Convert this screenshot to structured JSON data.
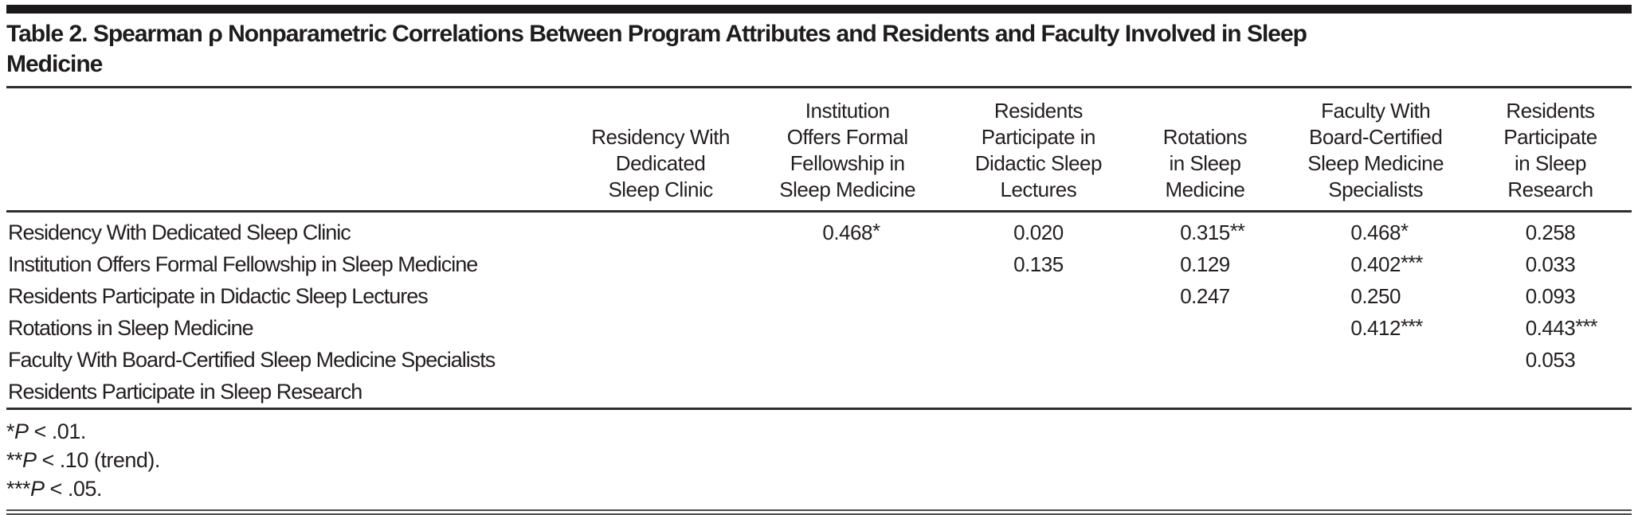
{
  "title": {
    "text": "Table 2. Spearman ρ Nonparametric Correlations Between Program Attributes and Residents and Faculty Involved in Sleep Medicine",
    "lines": [
      "Table 2. Spearman ρ Nonparametric Correlations Between Program Attributes and Residents and Faculty Involved in Sleep",
      "Medicine"
    ]
  },
  "table": {
    "columns": [
      {
        "label": "",
        "lines": []
      },
      {
        "label": "Residency With Dedicated Sleep Clinic",
        "lines": [
          "Residency With",
          "Dedicated",
          "Sleep Clinic"
        ]
      },
      {
        "label": "Institution Offers Formal Fellowship in Sleep Medicine",
        "lines": [
          "Institution",
          "Offers Formal",
          "Fellowship in",
          "Sleep Medicine"
        ]
      },
      {
        "label": "Residents Participate in Didactic Sleep Lectures",
        "lines": [
          "Residents",
          "Participate in",
          "Didactic Sleep",
          "Lectures"
        ]
      },
      {
        "label": "Rotations in Sleep Medicine",
        "lines": [
          "Rotations",
          "in Sleep",
          "Medicine"
        ]
      },
      {
        "label": "Faculty With Board-Certified Sleep Medicine Specialists",
        "lines": [
          "Faculty With",
          "Board-Certified",
          "Sleep Medicine",
          "Specialists"
        ]
      },
      {
        "label": "Residents Participate in Sleep Research",
        "lines": [
          "Residents",
          "Participate",
          "in Sleep",
          "Research"
        ]
      }
    ],
    "rows": [
      {
        "label": "Residency With Dedicated Sleep Clinic",
        "values": [
          "",
          "0.468*",
          "0.020",
          "0.315**",
          "0.468*",
          "0.258"
        ]
      },
      {
        "label": "Institution Offers Formal Fellowship in Sleep Medicine",
        "values": [
          "",
          "",
          "0.135",
          "0.129",
          "0.402***",
          "0.033"
        ]
      },
      {
        "label": "Residents Participate in Didactic Sleep Lectures",
        "values": [
          "",
          "",
          "",
          "0.247",
          "0.250",
          "0.093"
        ]
      },
      {
        "label": "Rotations in Sleep Medicine",
        "values": [
          "",
          "",
          "",
          "",
          "0.412***",
          "0.443***"
        ]
      },
      {
        "label": "Faculty With Board-Certified Sleep Medicine Specialists",
        "values": [
          "",
          "",
          "",
          "",
          "",
          "0.053"
        ]
      },
      {
        "label": "Residents Participate in Sleep Research",
        "values": [
          "",
          "",
          "",
          "",
          "",
          ""
        ]
      }
    ]
  },
  "footnotes": [
    {
      "marker": "*",
      "term": "P",
      "text": " < .01."
    },
    {
      "marker": "**",
      "term": "P",
      "text": " < .10 (trend)."
    },
    {
      "marker": "***",
      "term": "P",
      "text": " < .05."
    }
  ]
}
